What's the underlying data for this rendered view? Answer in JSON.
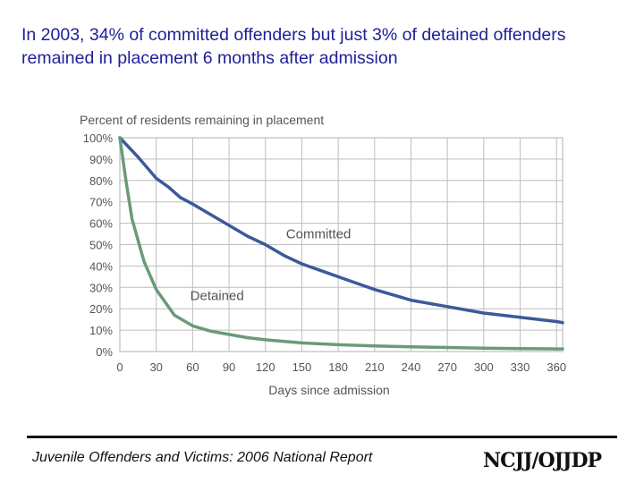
{
  "headline": "In 2003, 34% of committed offenders but just 3% of detained offenders remained in placement 6 months after admission",
  "footer": {
    "source": "Juvenile Offenders and Victims: 2006 National Report",
    "logo_text": "NCJJ/OJJDP"
  },
  "colors": {
    "headline": "#1f1f9a",
    "committed": "#3a5a9a",
    "detained": "#6a9a7a",
    "axis_text": "#555555",
    "grid": "#bdbdbd"
  },
  "chart_data": {
    "type": "line",
    "title": "Percent of residents remaining in placement",
    "xlabel": "Days since admission",
    "ylabel": "Percent of residents remaining in placement",
    "xlim": [
      0,
      365
    ],
    "ylim": [
      0,
      100
    ],
    "x_ticks": [
      0,
      30,
      60,
      90,
      120,
      150,
      180,
      210,
      240,
      270,
      300,
      330,
      360
    ],
    "x_tick_labels": [
      "0",
      "30",
      "60",
      "90",
      "120",
      "150",
      "180",
      "210",
      "240",
      "270",
      "300",
      "330",
      "360"
    ],
    "y_ticks": [
      0,
      10,
      20,
      30,
      40,
      50,
      60,
      70,
      80,
      90,
      100
    ],
    "y_tick_labels": [
      "0%",
      "10%",
      "20%",
      "30%",
      "40%",
      "50%",
      "60%",
      "70%",
      "80%",
      "90%",
      "100%"
    ],
    "grid": true,
    "series": [
      {
        "name": "Committed",
        "x": [
          0,
          15,
          30,
          40,
          50,
          60,
          75,
          90,
          105,
          120,
          135,
          150,
          165,
          180,
          210,
          240,
          270,
          300,
          330,
          360,
          365
        ],
        "y": [
          100,
          91,
          81,
          77,
          72,
          69,
          64,
          59,
          54,
          50,
          45,
          41,
          38,
          35,
          29,
          24,
          21,
          18,
          16,
          14,
          13.5
        ]
      },
      {
        "name": "Detained",
        "x": [
          0,
          5,
          10,
          20,
          30,
          45,
          60,
          75,
          90,
          105,
          120,
          150,
          180,
          210,
          240,
          270,
          300,
          330,
          365
        ],
        "y": [
          100,
          80,
          62,
          42,
          29,
          17,
          12,
          9.5,
          8,
          6.5,
          5.5,
          4,
          3.2,
          2.6,
          2.2,
          1.9,
          1.6,
          1.4,
          1.2
        ]
      }
    ],
    "annotations": [
      {
        "text": "Committed",
        "series": "Committed"
      },
      {
        "text": "Detained",
        "series": "Detained"
      }
    ]
  }
}
